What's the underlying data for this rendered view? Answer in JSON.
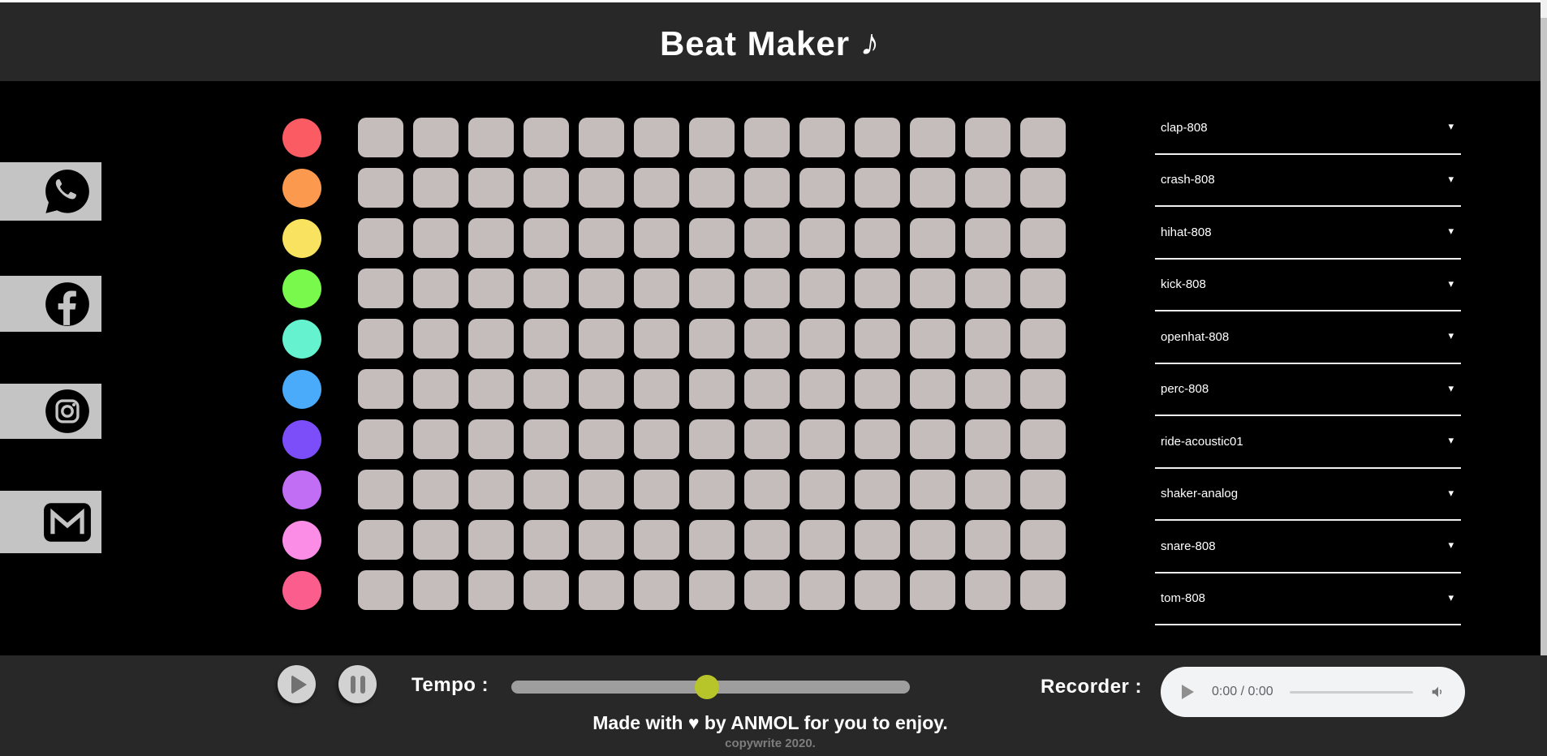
{
  "page": {
    "background": "#000000",
    "bar_background": "#282828"
  },
  "header": {
    "title": "Beat Maker",
    "note_icon": "♪"
  },
  "social": [
    {
      "name": "whatsapp",
      "icon": "whatsapp-icon"
    },
    {
      "name": "facebook",
      "icon": "facebook-icon"
    },
    {
      "name": "instagram",
      "icon": "instagram-icon"
    },
    {
      "name": "gmail",
      "icon": "gmail-icon"
    }
  ],
  "sequencer": {
    "columns": 13,
    "pad_color": "#c5bcbc",
    "dropdown_arrow": "▾",
    "rows": [
      {
        "sound": "clap-808",
        "color": "#fb5c64"
      },
      {
        "sound": "crash-808",
        "color": "#fb9a4e"
      },
      {
        "sound": "hihat-808",
        "color": "#f9e25f"
      },
      {
        "sound": "kick-808",
        "color": "#79f94b"
      },
      {
        "sound": "openhat-808",
        "color": "#65f2cf"
      },
      {
        "sound": "perc-808",
        "color": "#4aabfa"
      },
      {
        "sound": "ride-acoustic01",
        "color": "#7b4efa"
      },
      {
        "sound": "shaker-analog",
        "color": "#c16ef4"
      },
      {
        "sound": "snare-808",
        "color": "#fb8de6"
      },
      {
        "sound": "tom-808",
        "color": "#fb5e8d"
      }
    ]
  },
  "transport": {
    "tempo_label": "Tempo :",
    "tempo_percent": 49,
    "slider_track_color": "#9e9e9e",
    "slider_thumb_color": "#b7c52a",
    "recorder_label": "Recorder :",
    "audio": {
      "time": "0:00 / 0:00"
    }
  },
  "footer": {
    "line1": "Made with ♥ by ANMOL for you to enjoy.",
    "line2": "copywrite 2020."
  }
}
